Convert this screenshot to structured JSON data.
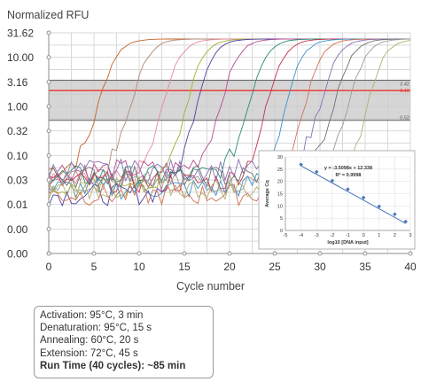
{
  "chart_data": [
    {
      "type": "line",
      "ylabel": "Normalized RFU",
      "xlabel": "Cycle number",
      "xlim": [
        0,
        40
      ],
      "yscale": "log",
      "x_ticks": [
        0,
        5,
        10,
        15,
        20,
        25,
        30,
        35,
        40
      ],
      "y_ticks": [
        "0.00",
        "0.00",
        "0.01",
        "0.03",
        "0.10",
        "0.32",
        "1.00",
        "3.16",
        "10.00",
        "31.62"
      ],
      "grid": true,
      "threshold_band": {
        "upper": "3.42",
        "threshold": "2.10",
        "lower": "0.52"
      },
      "amplification_curves_cq": [
        3.5,
        7,
        10.5,
        13,
        14,
        17,
        20,
        22,
        24,
        26,
        28,
        29.5,
        31,
        33
      ],
      "plateau": 33
    },
    {
      "type": "scatter",
      "xlabel": "log10 [DNA input]",
      "ylabel": "Average Cq",
      "xlim": [
        -5,
        3
      ],
      "ylim": [
        0,
        30
      ],
      "x_ticks": [
        -5,
        -4,
        -3,
        -2,
        -1,
        0,
        1,
        2,
        3
      ],
      "y_ticks": [
        0,
        5,
        10,
        15,
        20,
        25,
        30
      ],
      "points": [
        {
          "x": -4,
          "y": 26.9
        },
        {
          "x": -3,
          "y": 23.9
        },
        {
          "x": -2,
          "y": 20.3
        },
        {
          "x": -1,
          "y": 16.8
        },
        {
          "x": 0,
          "y": 13.4
        },
        {
          "x": 1,
          "y": 9.8
        },
        {
          "x": 2,
          "y": 6.6
        },
        {
          "x": 2.7,
          "y": 3.6
        }
      ],
      "equation": "y = -3.5098x + 12.338",
      "r_squared": "R² = 0.9998"
    }
  ],
  "colors": {
    "grid": "#d9d9d9",
    "threshold_band": "#c8c8c8",
    "threshold_line": "#e8312a",
    "band_edge": "#606060",
    "regression_line": "#4a76b8",
    "curves": [
      "#c4632a",
      "#b08878",
      "#e58a9a",
      "#a0b030",
      "#5040a0",
      "#b54c8f",
      "#2b8a78",
      "#c2314a",
      "#3d8fc9",
      "#d07050",
      "#8a6fb5",
      "#707070",
      "#9a9a9a",
      "#b0b070"
    ]
  },
  "run_conditions": {
    "lines": [
      "Activation: 95°C, 3 min",
      "Denaturation: 95°C, 15 s",
      "Annealing: 60°C, 20 s",
      "Extension: 72°C, 45 s"
    ],
    "run_time": "Run Time (40 cycles): ~85 min"
  }
}
